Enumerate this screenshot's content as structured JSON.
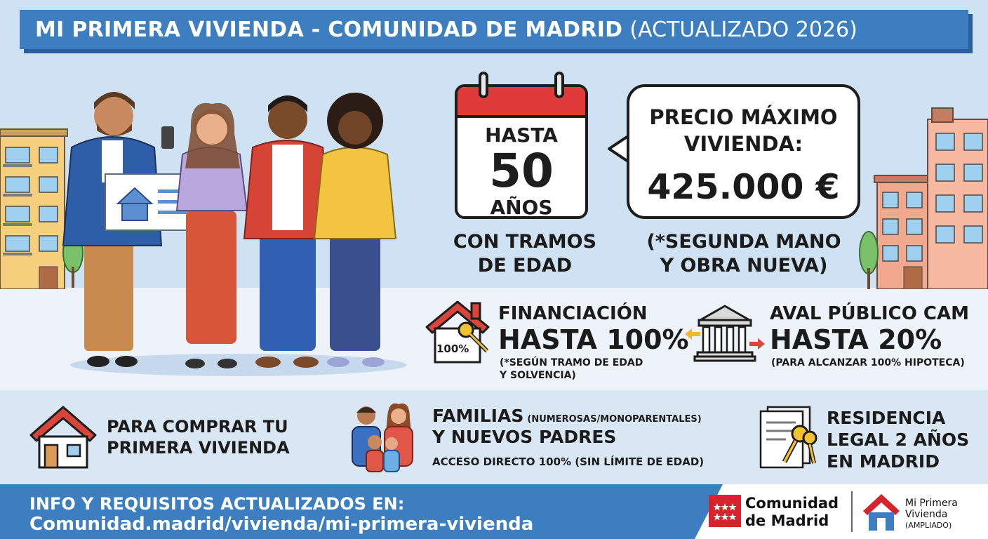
{
  "banner": {
    "title": "MI PRIMERA VIVIENDA - COMUNIDAD DE MADRID",
    "subtitle": "(ACTUALIZADO 2026)"
  },
  "age": {
    "line1": "HASTA",
    "number": "50",
    "line3": "AÑOS",
    "caption1": "CON TRAMOS",
    "caption2": "DE EDAD"
  },
  "price": {
    "line1": "PRECIO MÁXIMO",
    "line2": "VIVIENDA:",
    "amount": "425.000 €",
    "note1": "(*SEGUNDA MANO",
    "note2": "Y OBRA NUEVA)"
  },
  "financing": {
    "badge": "100%",
    "title": "FINANCIACIÓN",
    "value": "HASTA 100%",
    "note1": "(*SEGÚN TRAMO DE EDAD",
    "note2": "Y SOLVENCIA)"
  },
  "guarantee": {
    "title": "AVAL PÚBLICO CAM",
    "value": "HASTA 20%",
    "note": "(PARA ALCANZAR 100% HIPOTECA)"
  },
  "first_home": {
    "line1": "PARA COMPRAR TU",
    "line2": "PRIMERA VIVIENDA"
  },
  "families": {
    "title": "FAMILIAS",
    "title_note": "(NUMEROSAS/MONOPARENTALES)",
    "line2": "Y NUEVOS PADRES",
    "note": "ACCESO DIRECTO 100% (SIN LÍMITE DE EDAD)"
  },
  "residence": {
    "line1": "RESIDENCIA",
    "line2": "LEGAL 2 AÑOS",
    "line3": "EN MADRID"
  },
  "footer": {
    "line1": "INFO Y REQUISITOS ACTUALIZADOS EN:",
    "line2": "Comunidad.madrid/vivienda/mi-primera-vivienda",
    "org_line1": "Comunidad",
    "org_line2": "de Madrid",
    "logo_line1": "Mi Primera",
    "logo_line2": "Vivienda",
    "logo_line3": "(AMPLIADO)"
  },
  "colors": {
    "banner_blue": "#3c7ebf",
    "accent_red": "#e03a3a",
    "madrid_red": "#d7232c",
    "sky": "#cfe2f3"
  },
  "icons": [
    "calendar-icon",
    "house-key-icon",
    "bank-icon",
    "house-icon",
    "family-icon",
    "document-key-icon",
    "madrid-stars-icon",
    "mpv-house-logo-icon"
  ]
}
